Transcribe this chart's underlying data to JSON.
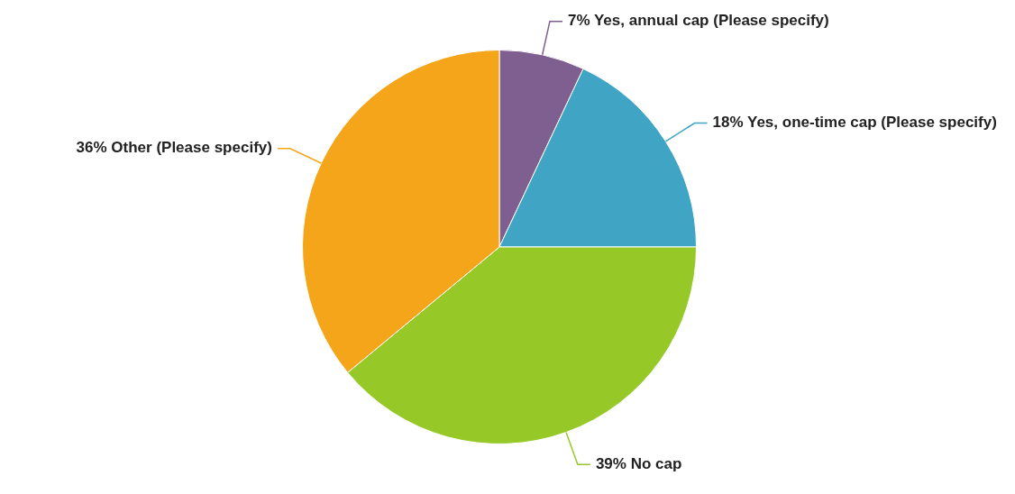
{
  "chart_data": {
    "type": "pie",
    "categories": [
      "Yes, annual cap (Please specify)",
      "Yes, one-time cap (Please specify)",
      "No cap",
      "Other (Please specify)"
    ],
    "values": [
      7,
      18,
      39,
      36
    ],
    "value_labels": [
      "7%",
      "18%",
      "39%",
      "36%"
    ],
    "colors": [
      "#7f5f8f",
      "#40a4c4",
      "#96c928",
      "#f5a51a"
    ],
    "legend": false
  }
}
